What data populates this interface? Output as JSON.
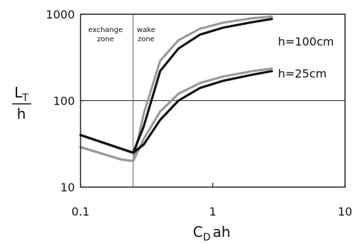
{
  "chart_data": {
    "type": "line",
    "title": "",
    "xlabel": "C",
    "xlabel_sub": "D",
    "xlabel_suffix": "ah",
    "ylabel_num": "L",
    "ylabel_num_sub": "T",
    "ylabel_den": "h",
    "x_scale": "log",
    "y_scale": "log",
    "xlim": [
      0.1,
      10
    ],
    "ylim": [
      10,
      1000
    ],
    "x_ticks": [
      {
        "value": 0.1,
        "label": "0.1"
      },
      {
        "value": 1,
        "label": "1"
      },
      {
        "value": 10,
        "label": "10"
      }
    ],
    "y_ticks": [
      {
        "value": 10,
        "label": "10"
      },
      {
        "value": 100,
        "label": "100"
      },
      {
        "value": 1000,
        "label": "1000"
      }
    ],
    "reference_lines": {
      "horizontal_y": 100,
      "vertical_x": 0.25
    },
    "zones": {
      "left": {
        "line1": "exchange",
        "line2": "zone"
      },
      "right": {
        "line1": "wake",
        "line2": "zone"
      }
    },
    "annotations": [
      {
        "text": "h=100cm",
        "x": 3.4,
        "y": 640
      },
      {
        "text": "h=25cm",
        "x": 3.4,
        "y": 160
      }
    ],
    "series": [
      {
        "color": "#999999",
        "x": [
          0.1,
          0.2,
          0.25,
          0.3,
          0.4,
          0.55,
          0.8,
          1.2,
          2.0,
          2.8
        ],
        "y": [
          29,
          21,
          20,
          70,
          290,
          500,
          680,
          800,
          900,
          940
        ]
      },
      {
        "color": "#111111",
        "x": [
          0.1,
          0.2,
          0.25,
          0.3,
          0.4,
          0.55,
          0.8,
          1.2,
          2.0,
          2.8
        ],
        "y": [
          40,
          28,
          25,
          50,
          220,
          400,
          580,
          700,
          810,
          880
        ]
      },
      {
        "color": "#999999",
        "x": [
          0.1,
          0.2,
          0.25,
          0.3,
          0.4,
          0.55,
          0.8,
          1.2,
          2.0,
          2.8
        ],
        "y": [
          29,
          21,
          20,
          36,
          75,
          120,
          160,
          190,
          220,
          235
        ]
      },
      {
        "color": "#111111",
        "x": [
          0.1,
          0.2,
          0.25,
          0.3,
          0.4,
          0.55,
          0.8,
          1.2,
          2.0,
          2.8
        ],
        "y": [
          40,
          28,
          25,
          31,
          60,
          100,
          140,
          170,
          200,
          220
        ]
      }
    ]
  }
}
